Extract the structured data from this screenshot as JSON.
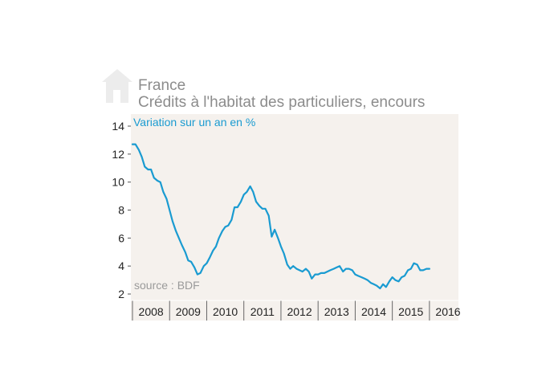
{
  "header": {
    "region": "France",
    "title": "Crédits à l'habitat des particuliers, encours",
    "icon": "house-icon"
  },
  "colors": {
    "panel_background": "#f5f1ed",
    "line": "#1a9bd1",
    "title": "#8c8c8c",
    "subtitle": "#1a9bd1",
    "source": "#9a9a9a"
  },
  "chart_data": {
    "type": "line",
    "title": "Crédits à l'habitat des particuliers, encours",
    "subtitle": "Variation sur un an en %",
    "xlabel": "",
    "ylabel": "",
    "source": "source : BDF",
    "ylim": [
      2,
      14
    ],
    "xlim": [
      2008.0,
      2016.5
    ],
    "yticks": [
      2,
      4,
      6,
      8,
      10,
      12,
      14
    ],
    "xtick_labels": [
      "2008",
      "2009",
      "2010",
      "2011",
      "2012",
      "2013",
      "2014",
      "2015",
      "2016"
    ],
    "grid": false,
    "legend": "none",
    "series": [
      {
        "name": "",
        "x": [
          2008.0,
          2008.08,
          2008.17,
          2008.25,
          2008.33,
          2008.42,
          2008.5,
          2008.58,
          2008.67,
          2008.75,
          2008.83,
          2008.92,
          2009.0,
          2009.08,
          2009.17,
          2009.25,
          2009.33,
          2009.42,
          2009.5,
          2009.58,
          2009.67,
          2009.75,
          2009.83,
          2009.92,
          2010.0,
          2010.08,
          2010.17,
          2010.25,
          2010.33,
          2010.42,
          2010.5,
          2010.58,
          2010.67,
          2010.75,
          2010.83,
          2010.92,
          2011.0,
          2011.08,
          2011.17,
          2011.25,
          2011.33,
          2011.42,
          2011.5,
          2011.58,
          2011.67,
          2011.75,
          2011.83,
          2011.92,
          2012.0,
          2012.08,
          2012.17,
          2012.25,
          2012.33,
          2012.42,
          2012.5,
          2012.58,
          2012.67,
          2012.75,
          2012.83,
          2012.92,
          2013.0,
          2013.08,
          2013.17,
          2013.25,
          2013.33,
          2013.42,
          2013.5,
          2013.58,
          2013.67,
          2013.75,
          2013.83,
          2013.92,
          2014.0,
          2014.08,
          2014.17,
          2014.25,
          2014.33,
          2014.42,
          2014.5,
          2014.58,
          2014.67,
          2014.75,
          2014.83,
          2014.92,
          2015.0,
          2015.08,
          2015.17,
          2015.25,
          2015.33,
          2015.42,
          2015.5,
          2015.58,
          2015.67,
          2015.75,
          2015.83,
          2015.92,
          2016.0
        ],
        "values": [
          12.7,
          12.7,
          12.3,
          11.8,
          11.1,
          10.9,
          10.9,
          10.3,
          10.1,
          10.0,
          9.3,
          8.8,
          8.0,
          7.2,
          6.5,
          6.0,
          5.5,
          5.0,
          4.4,
          4.3,
          3.9,
          3.4,
          3.5,
          4.0,
          4.2,
          4.6,
          5.1,
          5.4,
          6.0,
          6.5,
          6.8,
          6.9,
          7.3,
          8.2,
          8.2,
          8.6,
          9.1,
          9.3,
          9.7,
          9.3,
          8.6,
          8.3,
          8.1,
          8.1,
          7.6,
          6.1,
          6.6,
          6.0,
          5.4,
          4.9,
          4.1,
          3.8,
          4.0,
          3.8,
          3.7,
          3.6,
          3.8,
          3.6,
          3.1,
          3.4,
          3.4,
          3.5,
          3.5,
          3.6,
          3.7,
          3.8,
          3.9,
          4.0,
          3.6,
          3.8,
          3.8,
          3.7,
          3.4,
          3.3,
          3.2,
          3.1,
          3.0,
          2.8,
          2.7,
          2.6,
          2.4,
          2.7,
          2.5,
          2.9,
          3.2,
          3.0,
          2.9,
          3.2,
          3.3,
          3.7,
          3.8,
          4.2,
          4.1,
          3.7,
          3.7,
          3.8,
          3.8
        ]
      }
    ]
  }
}
